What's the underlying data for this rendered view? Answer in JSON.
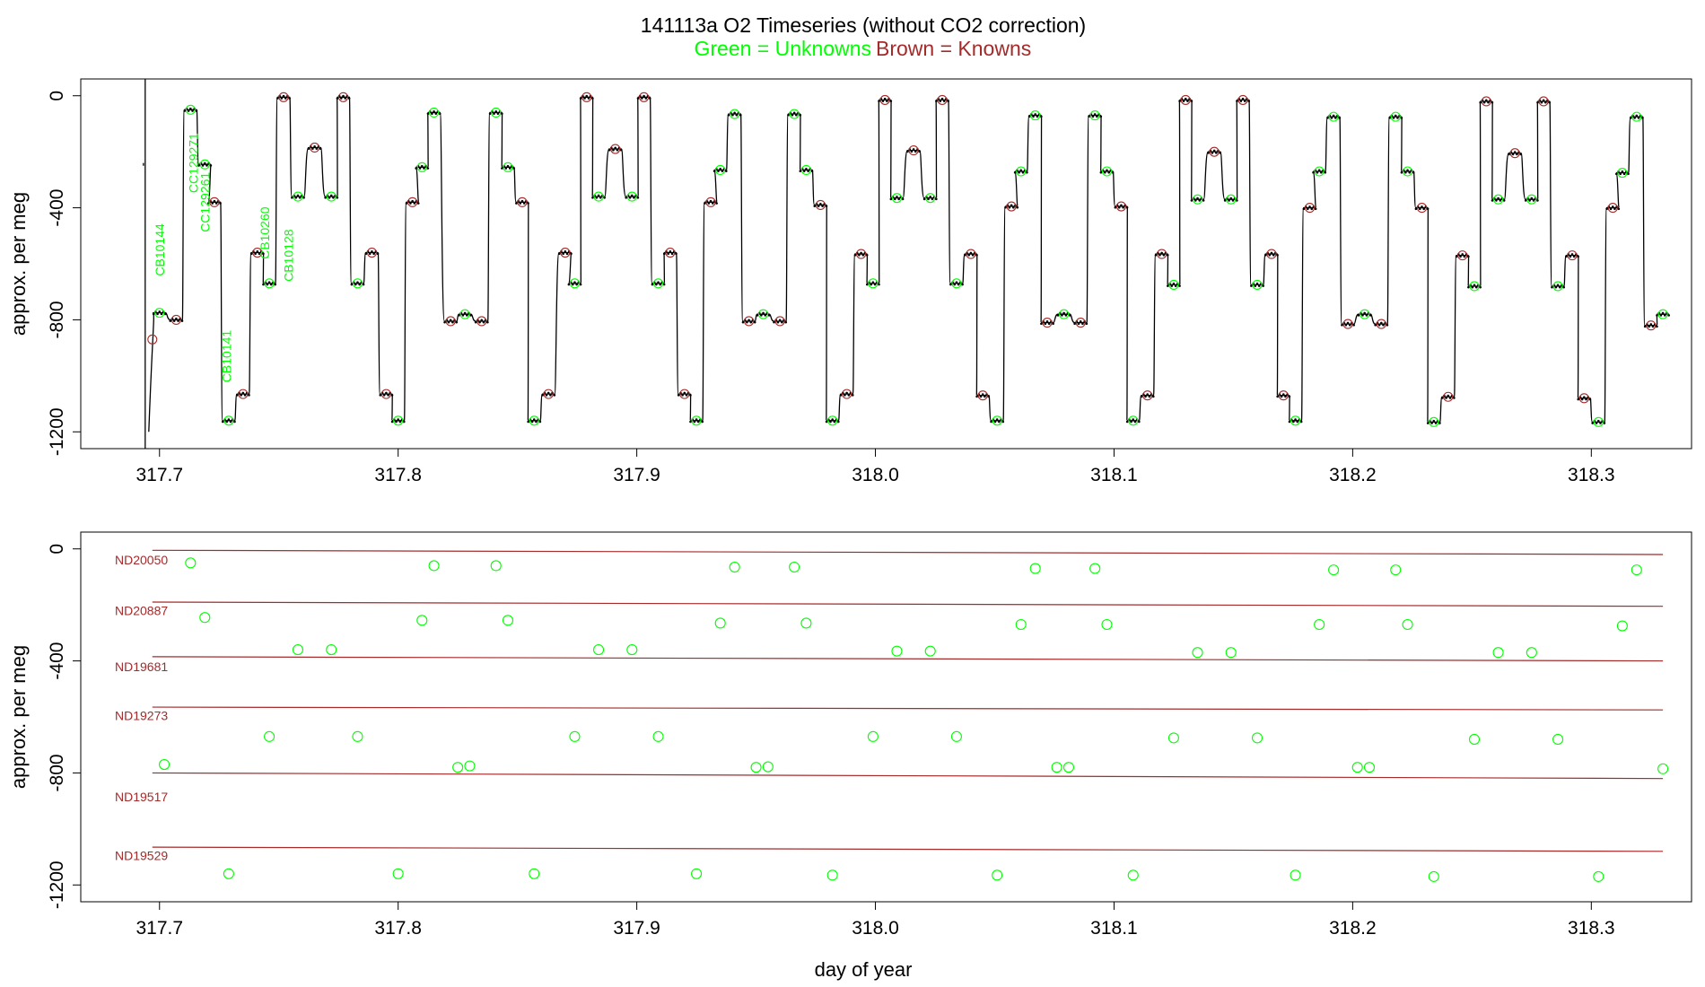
{
  "figure": {
    "title": "141113a   O2 Timeseries (without CO2 correction)",
    "legend_unknowns": "Green = Unknowns",
    "legend_knowns": "Brown = Knowns",
    "xlabel": "day of year"
  },
  "colors": {
    "unknown": "#00ff00",
    "known": "#a52a2a",
    "trace": "#000000"
  },
  "chart_data": [
    {
      "type": "line",
      "panel": "timeseries",
      "ylabel": "approx. per meg",
      "xlim": [
        317.667,
        318.342
      ],
      "ylim": [
        -1260,
        60
      ],
      "x_ticks": [
        "317.7",
        "317.8",
        "317.9",
        "318.0",
        "318.1",
        "318.2",
        "318.3"
      ],
      "y_ticks": [
        "0",
        "-400",
        "-800",
        "-1200"
      ],
      "y_tick_values": [
        0,
        -400,
        -800,
        -1200
      ],
      "x_tick_values": [
        317.7,
        317.8,
        317.9,
        318.0,
        318.1,
        318.2,
        318.3
      ],
      "steps": [
        {
          "x": 317.7,
          "y": -775,
          "k": false
        },
        {
          "x": 317.707,
          "y": -800,
          "k": true
        },
        {
          "x": 317.713,
          "y": -50,
          "k": false
        },
        {
          "x": 317.719,
          "y": -245,
          "k": false
        },
        {
          "x": 317.723,
          "y": -380,
          "k": true
        },
        {
          "x": 317.729,
          "y": -1160,
          "k": false
        },
        {
          "x": 317.735,
          "y": -1065,
          "k": true
        },
        {
          "x": 317.741,
          "y": -560,
          "k": true
        },
        {
          "x": 317.746,
          "y": -670,
          "k": false
        },
        {
          "x": 317.752,
          "y": -5,
          "k": true
        },
        {
          "x": 317.758,
          "y": -360,
          "k": false
        },
        {
          "x": 317.765,
          "y": -185,
          "k": true
        },
        {
          "x": 317.772,
          "y": -360,
          "k": false
        },
        {
          "x": 317.777,
          "y": -5,
          "k": true
        },
        {
          "x": 317.783,
          "y": -670,
          "k": false
        },
        {
          "x": 317.789,
          "y": -560,
          "k": true
        },
        {
          "x": 317.795,
          "y": -1065,
          "k": true
        },
        {
          "x": 317.8,
          "y": -1160,
          "k": false
        },
        {
          "x": 317.806,
          "y": -380,
          "k": true
        },
        {
          "x": 317.81,
          "y": -255,
          "k": false
        },
        {
          "x": 317.815,
          "y": -60,
          "k": false
        },
        {
          "x": 317.822,
          "y": -805,
          "k": true
        },
        {
          "x": 317.828,
          "y": -780,
          "k": false
        },
        {
          "x": 317.835,
          "y": -805,
          "k": true
        },
        {
          "x": 317.841,
          "y": -60,
          "k": false
        },
        {
          "x": 317.846,
          "y": -255,
          "k": false
        },
        {
          "x": 317.852,
          "y": -380,
          "k": true
        },
        {
          "x": 317.857,
          "y": -1160,
          "k": false
        },
        {
          "x": 317.863,
          "y": -1065,
          "k": true
        },
        {
          "x": 317.87,
          "y": -560,
          "k": true
        },
        {
          "x": 317.874,
          "y": -670,
          "k": false
        },
        {
          "x": 317.879,
          "y": -5,
          "k": true
        },
        {
          "x": 317.884,
          "y": -360,
          "k": false
        },
        {
          "x": 317.891,
          "y": -190,
          "k": true
        },
        {
          "x": 317.898,
          "y": -360,
          "k": false
        },
        {
          "x": 317.903,
          "y": -5,
          "k": true
        },
        {
          "x": 317.909,
          "y": -670,
          "k": false
        },
        {
          "x": 317.914,
          "y": -560,
          "k": true
        },
        {
          "x": 317.92,
          "y": -1065,
          "k": true
        },
        {
          "x": 317.925,
          "y": -1160,
          "k": false
        },
        {
          "x": 317.931,
          "y": -380,
          "k": true
        },
        {
          "x": 317.935,
          "y": -265,
          "k": false
        },
        {
          "x": 317.941,
          "y": -65,
          "k": false
        },
        {
          "x": 317.947,
          "y": -805,
          "k": true
        },
        {
          "x": 317.953,
          "y": -780,
          "k": false
        },
        {
          "x": 317.96,
          "y": -805,
          "k": true
        },
        {
          "x": 317.966,
          "y": -65,
          "k": false
        },
        {
          "x": 317.971,
          "y": -265,
          "k": false
        },
        {
          "x": 317.977,
          "y": -390,
          "k": true
        },
        {
          "x": 317.982,
          "y": -1160,
          "k": false
        },
        {
          "x": 317.988,
          "y": -1065,
          "k": true
        },
        {
          "x": 317.994,
          "y": -565,
          "k": true
        },
        {
          "x": 317.999,
          "y": -670,
          "k": false
        },
        {
          "x": 318.004,
          "y": -15,
          "k": true
        },
        {
          "x": 318.009,
          "y": -365,
          "k": false
        },
        {
          "x": 318.016,
          "y": -195,
          "k": true
        },
        {
          "x": 318.023,
          "y": -365,
          "k": false
        },
        {
          "x": 318.028,
          "y": -15,
          "k": true
        },
        {
          "x": 318.034,
          "y": -670,
          "k": false
        },
        {
          "x": 318.04,
          "y": -565,
          "k": true
        },
        {
          "x": 318.045,
          "y": -1070,
          "k": true
        },
        {
          "x": 318.051,
          "y": -1160,
          "k": false
        },
        {
          "x": 318.057,
          "y": -395,
          "k": true
        },
        {
          "x": 318.061,
          "y": -270,
          "k": false
        },
        {
          "x": 318.067,
          "y": -70,
          "k": false
        },
        {
          "x": 318.072,
          "y": -810,
          "k": true
        },
        {
          "x": 318.079,
          "y": -780,
          "k": false
        },
        {
          "x": 318.086,
          "y": -810,
          "k": true
        },
        {
          "x": 318.092,
          "y": -70,
          "k": false
        },
        {
          "x": 318.097,
          "y": -270,
          "k": false
        },
        {
          "x": 318.103,
          "y": -395,
          "k": true
        },
        {
          "x": 318.108,
          "y": -1160,
          "k": false
        },
        {
          "x": 318.114,
          "y": -1070,
          "k": true
        },
        {
          "x": 318.12,
          "y": -565,
          "k": true
        },
        {
          "x": 318.125,
          "y": -675,
          "k": false
        },
        {
          "x": 318.13,
          "y": -15,
          "k": true
        },
        {
          "x": 318.135,
          "y": -370,
          "k": false
        },
        {
          "x": 318.142,
          "y": -200,
          "k": true
        },
        {
          "x": 318.149,
          "y": -370,
          "k": false
        },
        {
          "x": 318.154,
          "y": -15,
          "k": true
        },
        {
          "x": 318.16,
          "y": -675,
          "k": false
        },
        {
          "x": 318.166,
          "y": -565,
          "k": true
        },
        {
          "x": 318.171,
          "y": -1070,
          "k": true
        },
        {
          "x": 318.176,
          "y": -1160,
          "k": false
        },
        {
          "x": 318.182,
          "y": -400,
          "k": true
        },
        {
          "x": 318.186,
          "y": -270,
          "k": false
        },
        {
          "x": 318.192,
          "y": -75,
          "k": false
        },
        {
          "x": 318.198,
          "y": -815,
          "k": true
        },
        {
          "x": 318.205,
          "y": -780,
          "k": false
        },
        {
          "x": 318.212,
          "y": -815,
          "k": true
        },
        {
          "x": 318.218,
          "y": -75,
          "k": false
        },
        {
          "x": 318.223,
          "y": -270,
          "k": false
        },
        {
          "x": 318.229,
          "y": -400,
          "k": true
        },
        {
          "x": 318.234,
          "y": -1165,
          "k": false
        },
        {
          "x": 318.24,
          "y": -1075,
          "k": true
        },
        {
          "x": 318.246,
          "y": -570,
          "k": true
        },
        {
          "x": 318.251,
          "y": -680,
          "k": false
        },
        {
          "x": 318.256,
          "y": -20,
          "k": true
        },
        {
          "x": 318.261,
          "y": -370,
          "k": false
        },
        {
          "x": 318.268,
          "y": -205,
          "k": true
        },
        {
          "x": 318.275,
          "y": -370,
          "k": false
        },
        {
          "x": 318.28,
          "y": -20,
          "k": true
        },
        {
          "x": 318.286,
          "y": -680,
          "k": false
        },
        {
          "x": 318.292,
          "y": -570,
          "k": true
        },
        {
          "x": 318.297,
          "y": -1080,
          "k": true
        },
        {
          "x": 318.303,
          "y": -1165,
          "k": false
        },
        {
          "x": 318.309,
          "y": -400,
          "k": true
        },
        {
          "x": 318.313,
          "y": -275,
          "k": false
        },
        {
          "x": 318.319,
          "y": -75,
          "k": false
        },
        {
          "x": 318.325,
          "y": -820,
          "k": true
        },
        {
          "x": 318.33,
          "y": -780,
          "k": false
        }
      ],
      "outlier_known": {
        "x": 317.697,
        "y": -870
      },
      "spike_x": 317.694,
      "sample_labels": [
        {
          "text": "CB10144",
          "x": 317.702,
          "y": -550
        },
        {
          "text": "CC129271",
          "x": 317.716,
          "y": -240
        },
        {
          "text": "CC129261",
          "x": 317.721,
          "y": -380
        },
        {
          "text": "CB10141",
          "x": 317.73,
          "y": -930
        },
        {
          "text": "CB10260",
          "x": 317.746,
          "y": -490
        },
        {
          "text": "CB10128",
          "x": 317.756,
          "y": -570
        }
      ]
    },
    {
      "type": "scatter",
      "panel": "unknowns-vs-knowns",
      "ylabel": "approx. per meg",
      "xlabel": "day of year",
      "xlim": [
        317.667,
        318.342
      ],
      "ylim": [
        -1260,
        60
      ],
      "x_ticks": [
        "317.7",
        "317.8",
        "317.9",
        "318.0",
        "318.1",
        "318.2",
        "318.3"
      ],
      "y_ticks": [
        "0",
        "-400",
        "-800",
        "-1200"
      ],
      "y_tick_values": [
        0,
        -400,
        -800,
        -1200
      ],
      "x_tick_values": [
        317.7,
        317.8,
        317.9,
        318.0,
        318.1,
        318.2,
        318.3
      ],
      "known_lines": [
        {
          "name": "ND20050",
          "y_start": -5,
          "y_end": -20,
          "label_y": -40
        },
        {
          "name": "ND20887",
          "y_start": -190,
          "y_end": -205,
          "label_y": -220
        },
        {
          "name": "ND19681",
          "y_start": -385,
          "y_end": -400,
          "label_y": -420
        },
        {
          "name": "ND19273",
          "y_start": -565,
          "y_end": -575,
          "label_y": -595
        },
        {
          "name": "ND19517",
          "y_start": -800,
          "y_end": -820,
          "label_y": -885
        },
        {
          "name": "ND19529",
          "y_start": -1065,
          "y_end": -1080,
          "label_y": -1095
        }
      ],
      "line_x_range": [
        317.697,
        318.33
      ],
      "unknowns": [
        {
          "x": 317.713,
          "y": -50
        },
        {
          "x": 317.719,
          "y": -245
        },
        {
          "x": 317.758,
          "y": -360
        },
        {
          "x": 317.772,
          "y": -360
        },
        {
          "x": 317.815,
          "y": -60
        },
        {
          "x": 317.81,
          "y": -255
        },
        {
          "x": 317.841,
          "y": -60
        },
        {
          "x": 317.846,
          "y": -255
        },
        {
          "x": 317.884,
          "y": -360
        },
        {
          "x": 317.898,
          "y": -360
        },
        {
          "x": 317.935,
          "y": -265
        },
        {
          "x": 317.941,
          "y": -65
        },
        {
          "x": 317.966,
          "y": -65
        },
        {
          "x": 317.971,
          "y": -265
        },
        {
          "x": 318.009,
          "y": -365
        },
        {
          "x": 318.023,
          "y": -365
        },
        {
          "x": 318.061,
          "y": -270
        },
        {
          "x": 318.067,
          "y": -70
        },
        {
          "x": 318.092,
          "y": -70
        },
        {
          "x": 318.097,
          "y": -270
        },
        {
          "x": 318.135,
          "y": -370
        },
        {
          "x": 318.149,
          "y": -370
        },
        {
          "x": 318.186,
          "y": -270
        },
        {
          "x": 318.192,
          "y": -75
        },
        {
          "x": 318.218,
          "y": -75
        },
        {
          "x": 318.223,
          "y": -270
        },
        {
          "x": 318.261,
          "y": -370
        },
        {
          "x": 318.275,
          "y": -370
        },
        {
          "x": 318.313,
          "y": -275
        },
        {
          "x": 318.319,
          "y": -75
        },
        {
          "x": 317.746,
          "y": -670
        },
        {
          "x": 317.783,
          "y": -670
        },
        {
          "x": 317.874,
          "y": -670
        },
        {
          "x": 317.909,
          "y": -670
        },
        {
          "x": 317.999,
          "y": -670
        },
        {
          "x": 318.034,
          "y": -670
        },
        {
          "x": 318.125,
          "y": -675
        },
        {
          "x": 318.16,
          "y": -675
        },
        {
          "x": 318.251,
          "y": -680
        },
        {
          "x": 318.286,
          "y": -680
        },
        {
          "x": 317.702,
          "y": -770
        },
        {
          "x": 317.825,
          "y": -780
        },
        {
          "x": 317.83,
          "y": -775
        },
        {
          "x": 317.95,
          "y": -780
        },
        {
          "x": 317.955,
          "y": -778
        },
        {
          "x": 318.076,
          "y": -780
        },
        {
          "x": 318.081,
          "y": -780
        },
        {
          "x": 318.202,
          "y": -780
        },
        {
          "x": 318.207,
          "y": -780
        },
        {
          "x": 318.33,
          "y": -785
        },
        {
          "x": 317.729,
          "y": -1160
        },
        {
          "x": 317.8,
          "y": -1160
        },
        {
          "x": 317.857,
          "y": -1160
        },
        {
          "x": 317.925,
          "y": -1160
        },
        {
          "x": 317.982,
          "y": -1165
        },
        {
          "x": 318.051,
          "y": -1165
        },
        {
          "x": 318.108,
          "y": -1165
        },
        {
          "x": 318.176,
          "y": -1165
        },
        {
          "x": 318.234,
          "y": -1170
        },
        {
          "x": 318.303,
          "y": -1170
        }
      ]
    }
  ]
}
